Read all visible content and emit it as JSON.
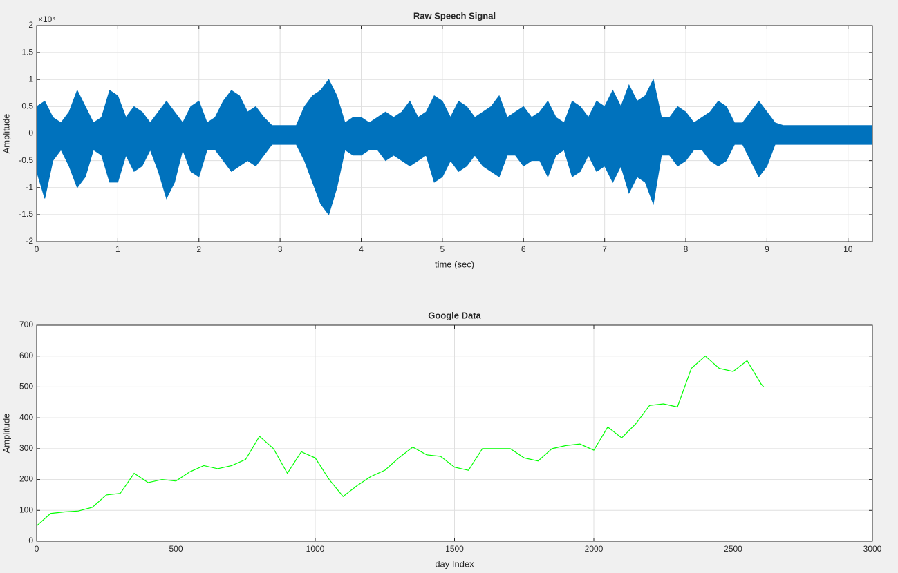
{
  "chart_data": [
    {
      "type": "area",
      "title": "Raw Speech Signal",
      "x_label": "time (sec)",
      "y_label": "Amplitude",
      "y_exponent": "×10⁴",
      "xlim": [
        0,
        10.3
      ],
      "xticks": [
        0,
        1,
        2,
        3,
        4,
        5,
        6,
        7,
        8,
        9,
        10
      ],
      "ylim": [
        -2,
        2
      ],
      "yticks": [
        -2,
        -1.5,
        -1,
        -0.5,
        0,
        0.5,
        1,
        1.5,
        2
      ],
      "grid": true,
      "x": [
        0.0,
        0.1,
        0.2,
        0.3,
        0.4,
        0.5,
        0.6,
        0.7,
        0.8,
        0.9,
        1.0,
        1.1,
        1.2,
        1.3,
        1.4,
        1.5,
        1.6,
        1.7,
        1.8,
        1.9,
        2.0,
        2.1,
        2.2,
        2.3,
        2.4,
        2.5,
        2.6,
        2.7,
        2.8,
        2.9,
        3.0,
        3.1,
        3.2,
        3.3,
        3.4,
        3.5,
        3.6,
        3.7,
        3.8,
        3.9,
        4.0,
        4.1,
        4.2,
        4.3,
        4.4,
        4.5,
        4.6,
        4.7,
        4.8,
        4.9,
        5.0,
        5.1,
        5.2,
        5.3,
        5.4,
        5.5,
        5.6,
        5.7,
        5.8,
        5.9,
        6.0,
        6.1,
        6.2,
        6.3,
        6.4,
        6.5,
        6.6,
        6.7,
        6.8,
        6.9,
        7.0,
        7.1,
        7.2,
        7.3,
        7.4,
        7.5,
        7.6,
        7.7,
        7.8,
        7.9,
        8.0,
        8.1,
        8.2,
        8.3,
        8.4,
        8.5,
        8.6,
        8.7,
        8.8,
        8.9,
        9.0,
        9.1,
        9.2,
        9.3,
        9.4,
        9.5,
        9.6,
        9.7,
        9.8,
        9.9,
        10.0,
        10.1,
        10.2,
        10.3
      ],
      "series": [
        {
          "color": "#0072bd",
          "values": [
            0.5,
            0.6,
            0.3,
            0.2,
            0.4,
            0.8,
            0.5,
            0.2,
            0.3,
            0.8,
            0.7,
            0.3,
            0.5,
            0.4,
            0.2,
            0.4,
            0.6,
            0.4,
            0.2,
            0.5,
            0.6,
            0.2,
            0.3,
            0.6,
            0.8,
            0.7,
            0.4,
            0.5,
            0.3,
            0.15,
            0.15,
            0.15,
            0.15,
            0.5,
            0.7,
            0.8,
            1.0,
            0.7,
            0.2,
            0.3,
            0.3,
            0.2,
            0.3,
            0.4,
            0.3,
            0.4,
            0.6,
            0.3,
            0.4,
            0.7,
            0.6,
            0.3,
            0.6,
            0.5,
            0.3,
            0.4,
            0.5,
            0.7,
            0.3,
            0.4,
            0.5,
            0.3,
            0.4,
            0.6,
            0.3,
            0.2,
            0.6,
            0.5,
            0.3,
            0.6,
            0.5,
            0.8,
            0.5,
            0.9,
            0.6,
            0.7,
            1.0,
            0.3,
            0.3,
            0.5,
            0.4,
            0.2,
            0.3,
            0.4,
            0.6,
            0.5,
            0.2,
            0.2,
            0.4,
            0.6,
            0.4,
            0.2,
            0.15,
            0.15,
            0.15,
            0.15,
            0.15,
            0.15,
            0.15,
            0.15,
            0.15,
            0.15,
            0.15,
            0.15
          ]
        },
        {
          "color": "#0072bd",
          "values": [
            -0.7,
            -1.2,
            -0.5,
            -0.3,
            -0.6,
            -1.0,
            -0.8,
            -0.3,
            -0.4,
            -0.9,
            -0.9,
            -0.4,
            -0.7,
            -0.6,
            -0.3,
            -0.7,
            -1.2,
            -0.9,
            -0.3,
            -0.7,
            -0.8,
            -0.3,
            -0.3,
            -0.5,
            -0.7,
            -0.6,
            -0.5,
            -0.6,
            -0.4,
            -0.2,
            -0.2,
            -0.2,
            -0.2,
            -0.5,
            -0.9,
            -1.3,
            -1.5,
            -1.0,
            -0.3,
            -0.4,
            -0.4,
            -0.3,
            -0.3,
            -0.5,
            -0.4,
            -0.5,
            -0.6,
            -0.5,
            -0.4,
            -0.9,
            -0.8,
            -0.5,
            -0.7,
            -0.6,
            -0.4,
            -0.6,
            -0.7,
            -0.8,
            -0.4,
            -0.4,
            -0.6,
            -0.5,
            -0.5,
            -0.8,
            -0.4,
            -0.3,
            -0.8,
            -0.7,
            -0.4,
            -0.7,
            -0.6,
            -0.9,
            -0.6,
            -1.1,
            -0.8,
            -0.9,
            -1.3,
            -0.4,
            -0.4,
            -0.6,
            -0.5,
            -0.3,
            -0.3,
            -0.5,
            -0.6,
            -0.5,
            -0.2,
            -0.2,
            -0.5,
            -0.8,
            -0.6,
            -0.2,
            -0.2,
            -0.2,
            -0.2,
            -0.2,
            -0.2,
            -0.2,
            -0.2,
            -0.2,
            -0.2,
            -0.2,
            -0.2,
            -0.2
          ]
        }
      ]
    },
    {
      "type": "line",
      "title": "Google Data",
      "x_label": "day Index",
      "y_label": "Amplitude",
      "xlim": [
        0,
        3000
      ],
      "xticks": [
        0,
        500,
        1000,
        1500,
        2000,
        2500,
        3000
      ],
      "ylim": [
        0,
        700
      ],
      "yticks": [
        0,
        100,
        200,
        300,
        400,
        500,
        600,
        700
      ],
      "grid": true,
      "color": "#00ff00",
      "x": [
        0,
        50,
        100,
        150,
        200,
        250,
        300,
        350,
        400,
        450,
        500,
        550,
        600,
        650,
        700,
        750,
        800,
        850,
        900,
        950,
        1000,
        1050,
        1100,
        1150,
        1200,
        1250,
        1300,
        1350,
        1400,
        1450,
        1500,
        1550,
        1600,
        1650,
        1700,
        1750,
        1800,
        1850,
        1900,
        1950,
        2000,
        2050,
        2100,
        2150,
        2200,
        2250,
        2300,
        2350,
        2400,
        2450,
        2500,
        2550,
        2600,
        2610
      ],
      "values": [
        50,
        90,
        95,
        98,
        110,
        150,
        155,
        220,
        190,
        200,
        195,
        225,
        245,
        235,
        245,
        265,
        340,
        300,
        220,
        290,
        270,
        200,
        145,
        180,
        210,
        230,
        270,
        305,
        280,
        275,
        240,
        230,
        300,
        300,
        300,
        270,
        260,
        300,
        310,
        315,
        295,
        370,
        335,
        380,
        440,
        445,
        435,
        560,
        600,
        560,
        550,
        585,
        510,
        500
      ]
    }
  ]
}
